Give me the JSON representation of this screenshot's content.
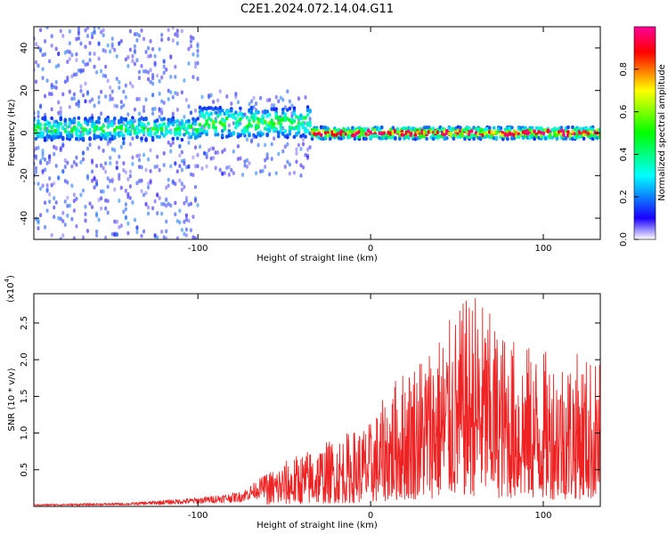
{
  "title": "C2E1.2024.072.14.04.G11",
  "chart_data": [
    {
      "type": "heatmap",
      "xlabel": "Height of straight line (km)",
      "ylabel": "Frequency (Hz)",
      "xlim": [
        -195,
        133
      ],
      "ylim": [
        -50,
        50
      ],
      "x_ticks": [
        -100,
        0,
        100
      ],
      "y_ticks": [
        -40,
        -20,
        0,
        20,
        40
      ],
      "colorbar": {
        "label": "Normalized spectral amplitude",
        "range": [
          0,
          1
        ],
        "ticks": [
          "0.0",
          "0.2",
          "0.4",
          "0.6",
          "0.8"
        ],
        "colors": [
          "#ffffff",
          "#1a00ff",
          "#00ffff",
          "#00ff00",
          "#ffff00",
          "#ff0000",
          "#ff0099"
        ]
      },
      "description_series": [
        {
          "x": [
            -195,
            -100
          ],
          "center_freq": 2,
          "band_halfwidth_hz": 6,
          "peak_amplitude": 0.45,
          "scatter_halfwidth_hz": 50
        },
        {
          "x": [
            -100,
            -35
          ],
          "center_freq": 5,
          "band_halfwidth_hz": 8,
          "peak_amplitude": 0.5,
          "scatter_halfwidth_hz": 20
        },
        {
          "x": [
            -35,
            133
          ],
          "center_freq": 0,
          "band_halfwidth_hz": 3,
          "peak_amplitude": 0.9,
          "scatter_halfwidth_hz": 8
        }
      ]
    },
    {
      "type": "line",
      "xlabel": "Height of straight line (km)",
      "ylabel": "SNR (10 * v/v)",
      "y_multiplier": "(x10",
      "y_multiplier_exp": "4",
      "xlim": [
        -195,
        133
      ],
      "ylim": [
        0,
        2.9
      ],
      "x_ticks": [
        -100,
        0,
        100
      ],
      "y_ticks": [
        "0.5",
        "1.0",
        "1.5",
        "2.0",
        "2.5"
      ],
      "series": [
        {
          "color": "#ee2222",
          "envelope": {
            "x": [
              -195,
              -140,
              -100,
              -75,
              -60,
              -45,
              -30,
              -15,
              0,
              15,
              30,
              45,
              60,
              75,
              90,
              105,
              120,
              133
            ],
            "y": [
              0.03,
              0.05,
              0.12,
              0.2,
              0.45,
              0.65,
              0.8,
              0.95,
              1.1,
              1.7,
              2.05,
              2.4,
              2.85,
              2.3,
              2.1,
              2.0,
              2.0,
              1.9
            ]
          }
        }
      ]
    }
  ]
}
